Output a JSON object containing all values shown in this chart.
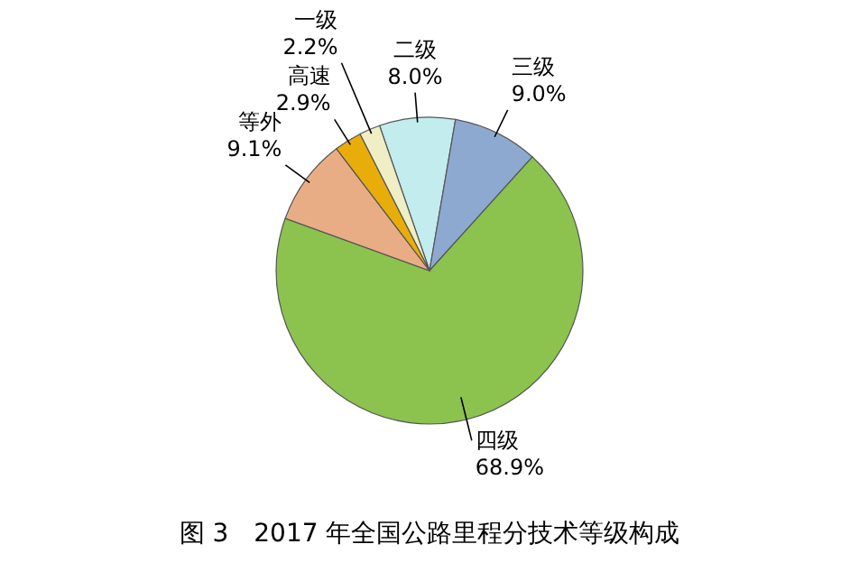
{
  "chart_data": {
    "type": "pie",
    "title": "图 3　2017 年全国公路里程分技术等级构成",
    "categories": [
      "二级",
      "三级",
      "四级",
      "等外",
      "高速",
      "一级"
    ],
    "values": [
      8.0,
      9.0,
      68.9,
      9.1,
      2.9,
      2.2
    ],
    "colors": [
      "#c2ecee",
      "#8ea9d0",
      "#8cc24e",
      "#e9ad86",
      "#e9ad0a",
      "#efeec4"
    ],
    "value_labels": [
      "8.0%",
      "9.0%",
      "68.9%",
      "9.1%",
      "2.9%",
      "2.2%"
    ]
  }
}
